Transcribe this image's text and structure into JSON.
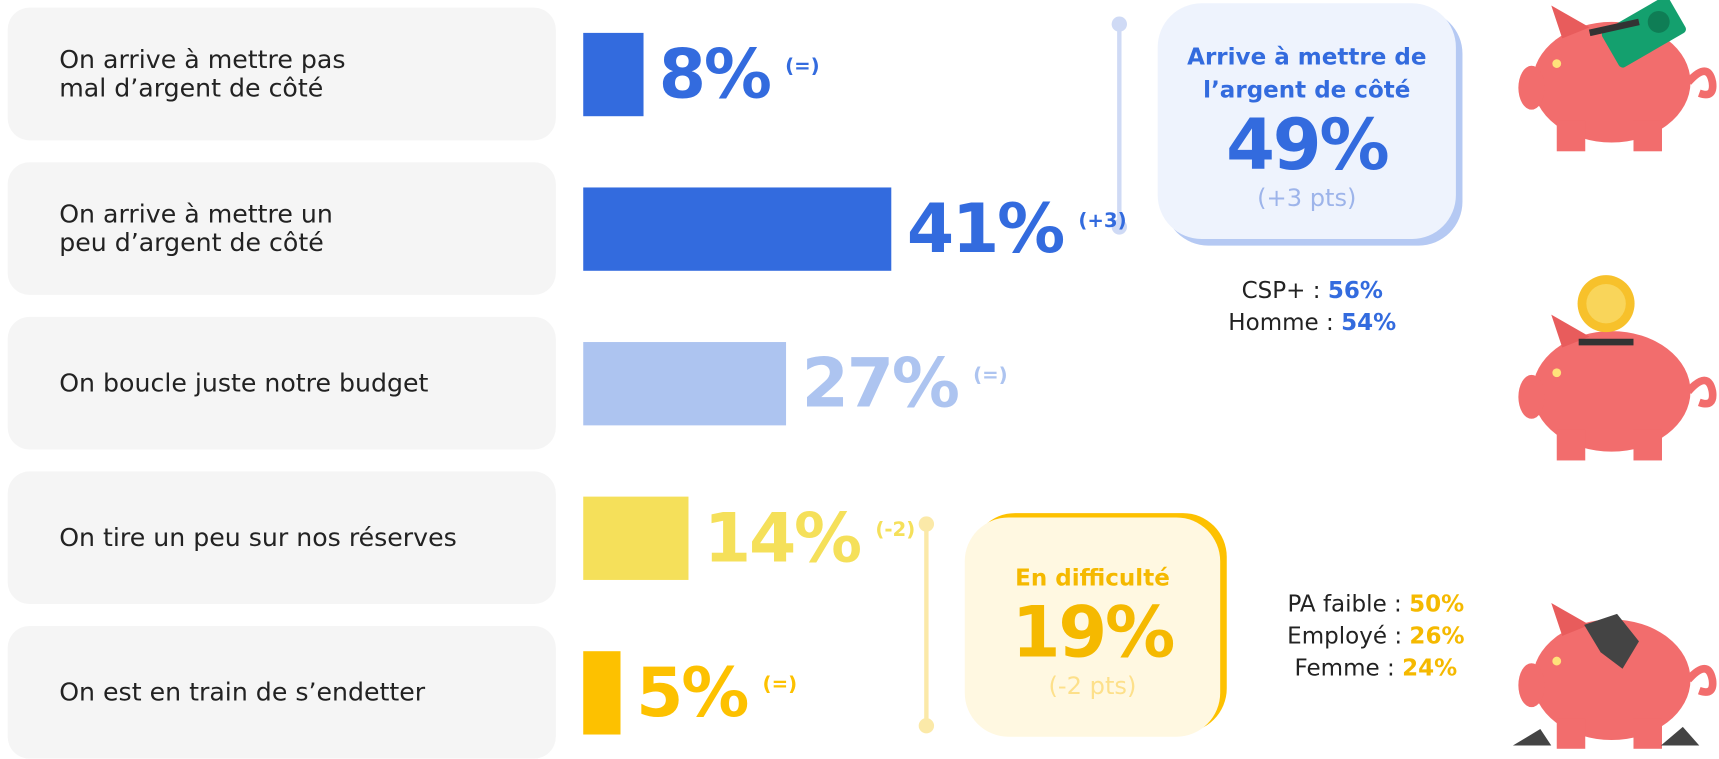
{
  "chart_data": {
    "type": "bar",
    "orientation": "horizontal",
    "categories": [
      "On arrive à mettre pas\nmal d’argent de côté",
      "On arrive à mettre un\npeu d’argent de côté",
      "On boucle juste notre budget",
      "On tire un peu sur nos réserves",
      "On est en train de s’endetter"
    ],
    "values": [
      8,
      41,
      27,
      14,
      5
    ],
    "value_labels": [
      "8%",
      "41%",
      "27%",
      "14%",
      "5%"
    ],
    "changes": [
      "(=)",
      "(+3)",
      "(=)",
      "(-2)",
      "(=)"
    ],
    "colors": [
      "#336bde",
      "#336bde",
      "#adc4f0",
      "#f5e05a",
      "#fdc100"
    ]
  },
  "summaries": [
    {
      "title": "Arrive à mettre de\nl’argent de côté",
      "value": "49%",
      "change": "(+3 pts)",
      "color": "#336bde",
      "breakdown": [
        {
          "label": "CSP+ :",
          "value": "56%"
        },
        {
          "label": "Homme :",
          "value": "54%"
        }
      ]
    },
    {
      "title": "En difficulté",
      "value": "19%",
      "change": "(-2 pts)",
      "color": "#f5b900",
      "breakdown": [
        {
          "label": "PA faible :",
          "value": "50%"
        },
        {
          "label": "Employé :",
          "value": "26%"
        },
        {
          "label": "Femme :",
          "value": "24%"
        }
      ]
    }
  ]
}
